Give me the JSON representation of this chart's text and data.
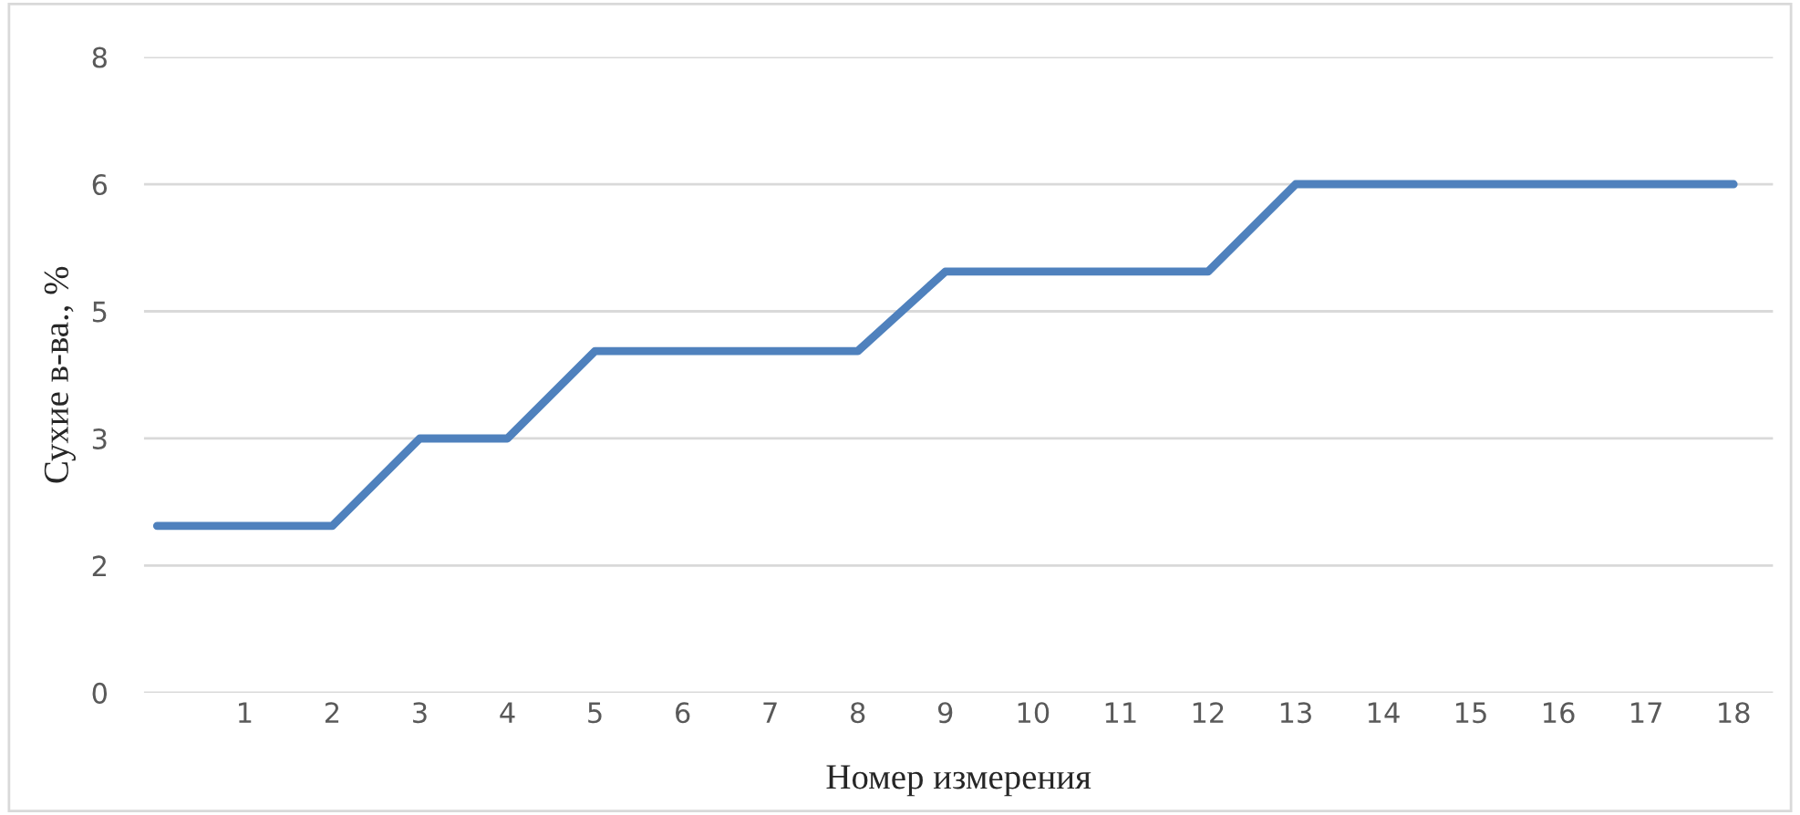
{
  "chart_data": {
    "type": "line",
    "xlabel": "Номер измерения",
    "ylabel": "Сухие в-ва., %",
    "categories": [
      null,
      "1",
      "2",
      "3",
      "4",
      "5",
      "6",
      "7",
      "8",
      "9",
      "10",
      "11",
      "12",
      "13",
      "14",
      "15",
      "16",
      "17",
      "18"
    ],
    "series": [
      {
        "color": "#4f81bd",
        "values": [
          2.1,
          2.1,
          2.1,
          3.2,
          3.2,
          4.3,
          4.3,
          4.3,
          4.3,
          5.3,
          5.3,
          5.3,
          5.3,
          6.4,
          6.4,
          6.4,
          6.4,
          6.4,
          6.4
        ]
      }
    ],
    "ylim": [
      0,
      8
    ],
    "yticks": [
      0,
      {
        "value": 1.6,
        "label": "2"
      },
      {
        "value": 3.2,
        "label": "3"
      },
      {
        "value": 4.8,
        "label": "5"
      },
      {
        "value": 6.4,
        "label": "6"
      },
      8
    ],
    "grid": "y",
    "marker": "none",
    "line_style": "solid"
  }
}
